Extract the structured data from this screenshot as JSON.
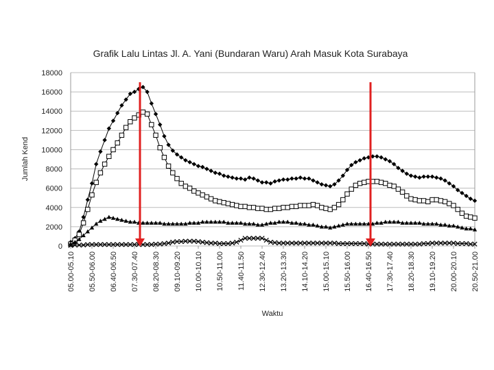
{
  "chart_data": {
    "type": "line",
    "title": "Grafik Lalu Lintas Jl. A. Yani (Bundaran Waru) Arah Masuk Kota Surabaya",
    "x_label": "Waktu",
    "y_label": "Jumlah Kend",
    "categories": [
      "05.00-05.10",
      null,
      null,
      null,
      null,
      "05.50-06.00",
      null,
      null,
      null,
      null,
      "06.40-06.50",
      null,
      null,
      null,
      null,
      "07.30-07.40",
      null,
      null,
      null,
      null,
      "08.20-08.30",
      null,
      null,
      null,
      null,
      "09.10-09.20",
      null,
      null,
      null,
      null,
      "10.00-10.10",
      null,
      null,
      null,
      null,
      "10.50-11.00",
      null,
      null,
      null,
      null,
      "11.40-11.50",
      null,
      null,
      null,
      null,
      "12.30-12.40",
      null,
      null,
      null,
      null,
      "13.20-13.30",
      null,
      null,
      null,
      null,
      "14.10-14.20",
      null,
      null,
      null,
      null,
      "15.00-15.10",
      null,
      null,
      null,
      null,
      "15.50-16.00",
      null,
      null,
      null,
      null,
      "16.40-16.50",
      null,
      null,
      null,
      null,
      "17.30-17.40",
      null,
      null,
      null,
      null,
      "18.20-18.30",
      null,
      null,
      null,
      null,
      "19.10-19.20",
      null,
      null,
      null,
      null,
      "20.00-20.10",
      null,
      null,
      null,
      null,
      "20.50-21.00"
    ],
    "series": [
      {
        "color": "#000000",
        "marker": "diamond",
        "values": [
          400,
          800,
          1500,
          3000,
          4800,
          6500,
          8500,
          9800,
          11000,
          12200,
          13000,
          13800,
          14600,
          15200,
          15800,
          16000,
          16300,
          16500,
          16000,
          14800,
          13700,
          12600,
          11400,
          10500,
          9900,
          9500,
          9200,
          8900,
          8700,
          8500,
          8300,
          8200,
          8000,
          7800,
          7600,
          7500,
          7300,
          7200,
          7100,
          7000,
          7000,
          6900,
          7100,
          7000,
          6800,
          6600,
          6600,
          6500,
          6700,
          6800,
          6900,
          6900,
          7000,
          7000,
          7100,
          7000,
          7000,
          6800,
          6600,
          6400,
          6300,
          6200,
          6400,
          6800,
          7300,
          7900,
          8400,
          8700,
          8900,
          9100,
          9200,
          9300,
          9300,
          9200,
          9000,
          8800,
          8500,
          8100,
          7800,
          7500,
          7300,
          7200,
          7100,
          7200,
          7200,
          7200,
          7100,
          7000,
          6800,
          6500,
          6200,
          5800,
          5500,
          5200,
          4900,
          4700
        ]
      },
      {
        "color": "#000000",
        "marker": "square",
        "values": [
          200,
          600,
          1200,
          2400,
          3800,
          5300,
          6600,
          7600,
          8500,
          9300,
          10000,
          10700,
          11500,
          12300,
          12900,
          13300,
          13600,
          13900,
          13700,
          12600,
          11500,
          10200,
          9200,
          8300,
          7600,
          7000,
          6500,
          6200,
          6000,
          5700,
          5500,
          5300,
          5100,
          4900,
          4700,
          4600,
          4500,
          4400,
          4300,
          4200,
          4100,
          4100,
          4000,
          4000,
          3900,
          3900,
          3800,
          3800,
          3900,
          3900,
          4000,
          4000,
          4100,
          4100,
          4200,
          4200,
          4200,
          4300,
          4200,
          4000,
          3900,
          3800,
          4000,
          4300,
          4800,
          5400,
          5900,
          6300,
          6500,
          6600,
          6700,
          6700,
          6700,
          6600,
          6500,
          6300,
          6200,
          5900,
          5600,
          5200,
          4900,
          4800,
          4700,
          4700,
          4600,
          4800,
          4800,
          4700,
          4600,
          4400,
          4200,
          3800,
          3400,
          3100,
          3000,
          2900
        ]
      },
      {
        "color": "#000000",
        "marker": "triangle",
        "values": [
          200,
          400,
          700,
          1100,
          1500,
          1900,
          2300,
          2600,
          2800,
          3000,
          2900,
          2800,
          2700,
          2600,
          2500,
          2500,
          2400,
          2400,
          2400,
          2400,
          2400,
          2400,
          2300,
          2300,
          2300,
          2300,
          2300,
          2300,
          2400,
          2400,
          2400,
          2500,
          2500,
          2500,
          2500,
          2500,
          2500,
          2400,
          2400,
          2400,
          2400,
          2300,
          2300,
          2300,
          2200,
          2200,
          2300,
          2400,
          2400,
          2500,
          2500,
          2500,
          2400,
          2400,
          2300,
          2300,
          2200,
          2200,
          2100,
          2000,
          2000,
          1900,
          2000,
          2100,
          2200,
          2300,
          2300,
          2300,
          2300,
          2300,
          2300,
          2300,
          2400,
          2400,
          2500,
          2500,
          2500,
          2500,
          2400,
          2400,
          2400,
          2400,
          2400,
          2300,
          2300,
          2300,
          2300,
          2200,
          2200,
          2100,
          2100,
          2000,
          1900,
          1800,
          1800,
          1700
        ]
      },
      {
        "color": "#000000",
        "marker": "cross",
        "values": [
          50,
          100,
          100,
          100,
          150,
          150,
          150,
          150,
          150,
          150,
          150,
          150,
          150,
          150,
          150,
          150,
          150,
          150,
          150,
          150,
          200,
          200,
          250,
          300,
          400,
          450,
          450,
          500,
          500,
          500,
          450,
          400,
          350,
          300,
          300,
          250,
          250,
          250,
          300,
          400,
          600,
          800,
          800,
          800,
          800,
          800,
          600,
          400,
          350,
          300,
          300,
          300,
          300,
          300,
          300,
          300,
          300,
          300,
          300,
          300,
          300,
          300,
          300,
          250,
          250,
          250,
          250,
          250,
          250,
          250,
          200,
          200,
          200,
          200,
          200,
          200,
          200,
          200,
          200,
          200,
          200,
          200,
          200,
          250,
          250,
          300,
          300,
          300,
          300,
          300,
          300,
          250,
          250,
          250,
          200,
          200
        ]
      }
    ],
    "ylim": [
      0,
      18000
    ],
    "yticks": [
      0,
      2000,
      4000,
      6000,
      8000,
      10000,
      12000,
      14000,
      16000,
      18000
    ],
    "grid": true
  }
}
